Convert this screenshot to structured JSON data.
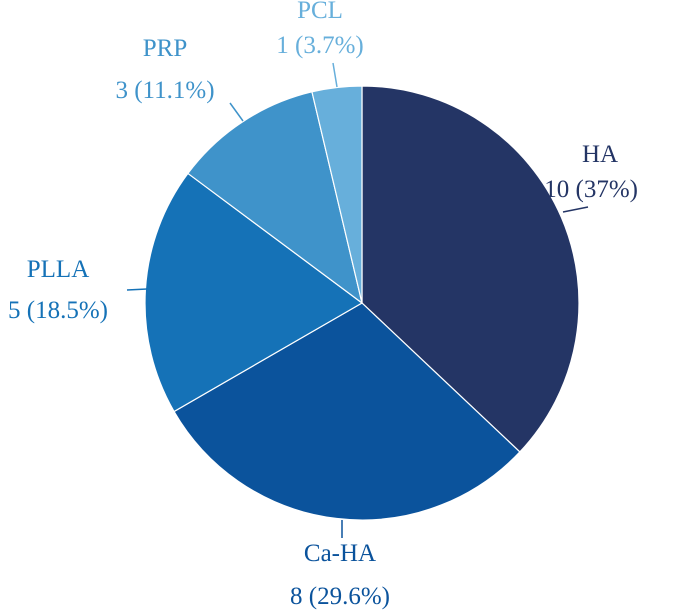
{
  "chart_data": {
    "type": "pie",
    "slices": [
      {
        "category": "HA",
        "value": 10,
        "label": "10 (37%)",
        "color": "#243565"
      },
      {
        "category": "Ca-HA",
        "value": 8,
        "label": "8 (29.6%)",
        "color": "#0b539c"
      },
      {
        "category": "PLLA",
        "value": 5,
        "label": "5 (18.5%)",
        "color": "#1572b7"
      },
      {
        "category": "PRP",
        "value": 3,
        "label": "3 (11.1%)",
        "color": "#3f93ca"
      },
      {
        "category": "PCL",
        "value": 1,
        "label": "1 (3.7%)",
        "color": "#67afdb"
      }
    ],
    "label_colors": {
      "HA": "#243565",
      "Ca-HA": "#0b539c",
      "PLLA": "#1572b7",
      "PRP": "#3f93ca",
      "PCL": "#67afdb"
    },
    "legend": "none"
  }
}
